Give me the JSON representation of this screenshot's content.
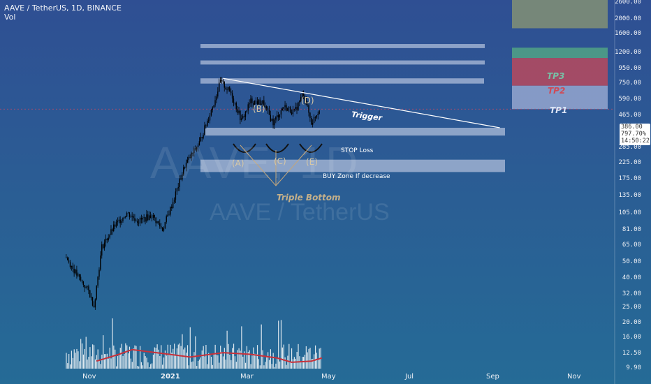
{
  "header": {
    "title": "AAVE / TetherUS, 1D, BINANCE",
    "volume_label": "Vol"
  },
  "watermark": {
    "symbol": "AAVE, 1D",
    "pair": "AAVE / TetherUS"
  },
  "price_axis": {
    "ticks": [
      "2600.00",
      "2000.00",
      "1600.00",
      "1200.00",
      "950.00",
      "750.00",
      "590.00",
      "465.00",
      "285.00",
      "225.00",
      "175.00",
      "135.00",
      "105.00",
      "81.00",
      "65.00",
      "50.00",
      "40.00",
      "32.00",
      "25.00",
      "20.00",
      "16.00",
      "12.50",
      "9.90"
    ],
    "current_price": "386.00",
    "change_percent": "797.70%",
    "countdown": "14:50:22"
  },
  "time_axis": {
    "ticks": [
      "Nov",
      "2021",
      "Mar",
      "May",
      "Jul",
      "Sep",
      "Nov"
    ]
  },
  "annotations": {
    "stop_loss": "STOP Loss",
    "buy_zone": "BUY Zone If decrease",
    "trigger": "Trigger",
    "pattern": "Triple Bottom",
    "points": [
      "(A)",
      "(B)",
      "(C)",
      "(D)",
      "(E)"
    ],
    "targets": [
      "TP1",
      "TP2",
      "TP3"
    ]
  },
  "colors": {
    "candle": "#000000",
    "volume": "#ffffff",
    "volume_ma": "#c8313a",
    "zone": "#b3c0dd",
    "tp1": "#8fa2cc",
    "tp2": "#b04a61",
    "tp3": "#4f9e86",
    "profit_area": "#8f9a70",
    "pattern_text": "#d7c8a6"
  },
  "chart_data": {
    "type": "candlestick",
    "scale": "log",
    "title": "AAVE / TetherUS, 1D, BINANCE",
    "close_path": [
      {
        "date": "2020-10-16",
        "price": 52
      },
      {
        "date": "2020-10-25",
        "price": 40
      },
      {
        "date": "2020-11-02",
        "price": 33
      },
      {
        "date": "2020-11-06",
        "price": 27
      },
      {
        "date": "2020-11-12",
        "price": 60
      },
      {
        "date": "2020-11-22",
        "price": 80
      },
      {
        "date": "2020-12-01",
        "price": 95
      },
      {
        "date": "2020-12-10",
        "price": 85
      },
      {
        "date": "2020-12-20",
        "price": 92
      },
      {
        "date": "2020-12-28",
        "price": 76
      },
      {
        "date": "2021-01-04",
        "price": 105
      },
      {
        "date": "2021-01-14",
        "price": 180
      },
      {
        "date": "2021-01-25",
        "price": 245
      },
      {
        "date": "2021-02-05",
        "price": 420
      },
      {
        "date": "2021-02-10",
        "price": 560
      },
      {
        "date": "2021-02-18",
        "price": 480
      },
      {
        "date": "2021-02-26",
        "price": 330
      },
      {
        "date": "2021-03-05",
        "price": 430
      },
      {
        "date": "2021-03-14",
        "price": 420
      },
      {
        "date": "2021-03-22",
        "price": 320
      },
      {
        "date": "2021-03-30",
        "price": 400
      },
      {
        "date": "2021-04-07",
        "price": 370
      },
      {
        "date": "2021-04-14",
        "price": 480
      },
      {
        "date": "2021-04-20",
        "price": 320
      },
      {
        "date": "2021-04-26",
        "price": 386
      }
    ],
    "volume_ma_path": [
      {
        "date": "2020-11-08",
        "value": 12.5
      },
      {
        "date": "2020-11-25",
        "value": 16
      },
      {
        "date": "2020-12-05",
        "value": 19
      },
      {
        "date": "2020-12-28",
        "value": 16.5
      },
      {
        "date": "2021-01-18",
        "value": 14.5
      },
      {
        "date": "2021-02-12",
        "value": 17
      },
      {
        "date": "2021-03-05",
        "value": 16
      },
      {
        "date": "2021-03-25",
        "value": 14
      },
      {
        "date": "2021-04-05",
        "value": 12
      },
      {
        "date": "2021-04-20",
        "value": 12.5
      },
      {
        "date": "2021-04-28",
        "value": 14
      }
    ],
    "zones": [
      {
        "label": "",
        "low": 1950,
        "high": 2080
      },
      {
        "label": "",
        "low": 880,
        "high": 930
      },
      {
        "label": "",
        "low": 705,
        "high": 745
      },
      {
        "label": "",
        "low": 545,
        "high": 585
      },
      {
        "label": "STOP Loss",
        "low": 270,
        "high": 300
      },
      {
        "label": "BUY Zone If decrease",
        "low": 165,
        "high": 195
      }
    ],
    "targets": [
      {
        "label": "TP1",
        "low": 386,
        "high": 530
      },
      {
        "label": "TP2",
        "low": 530,
        "high": 770
      },
      {
        "label": "TP3",
        "low": 770,
        "high": 885
      }
    ],
    "trigger_line": {
      "from": {
        "date": "2021-02-12",
        "price": 585
      },
      "to": {
        "date": "2021-09-10",
        "price": 300
      }
    },
    "ylim": [
      9.9,
      2600
    ],
    "legend": "none",
    "grid": false
  }
}
